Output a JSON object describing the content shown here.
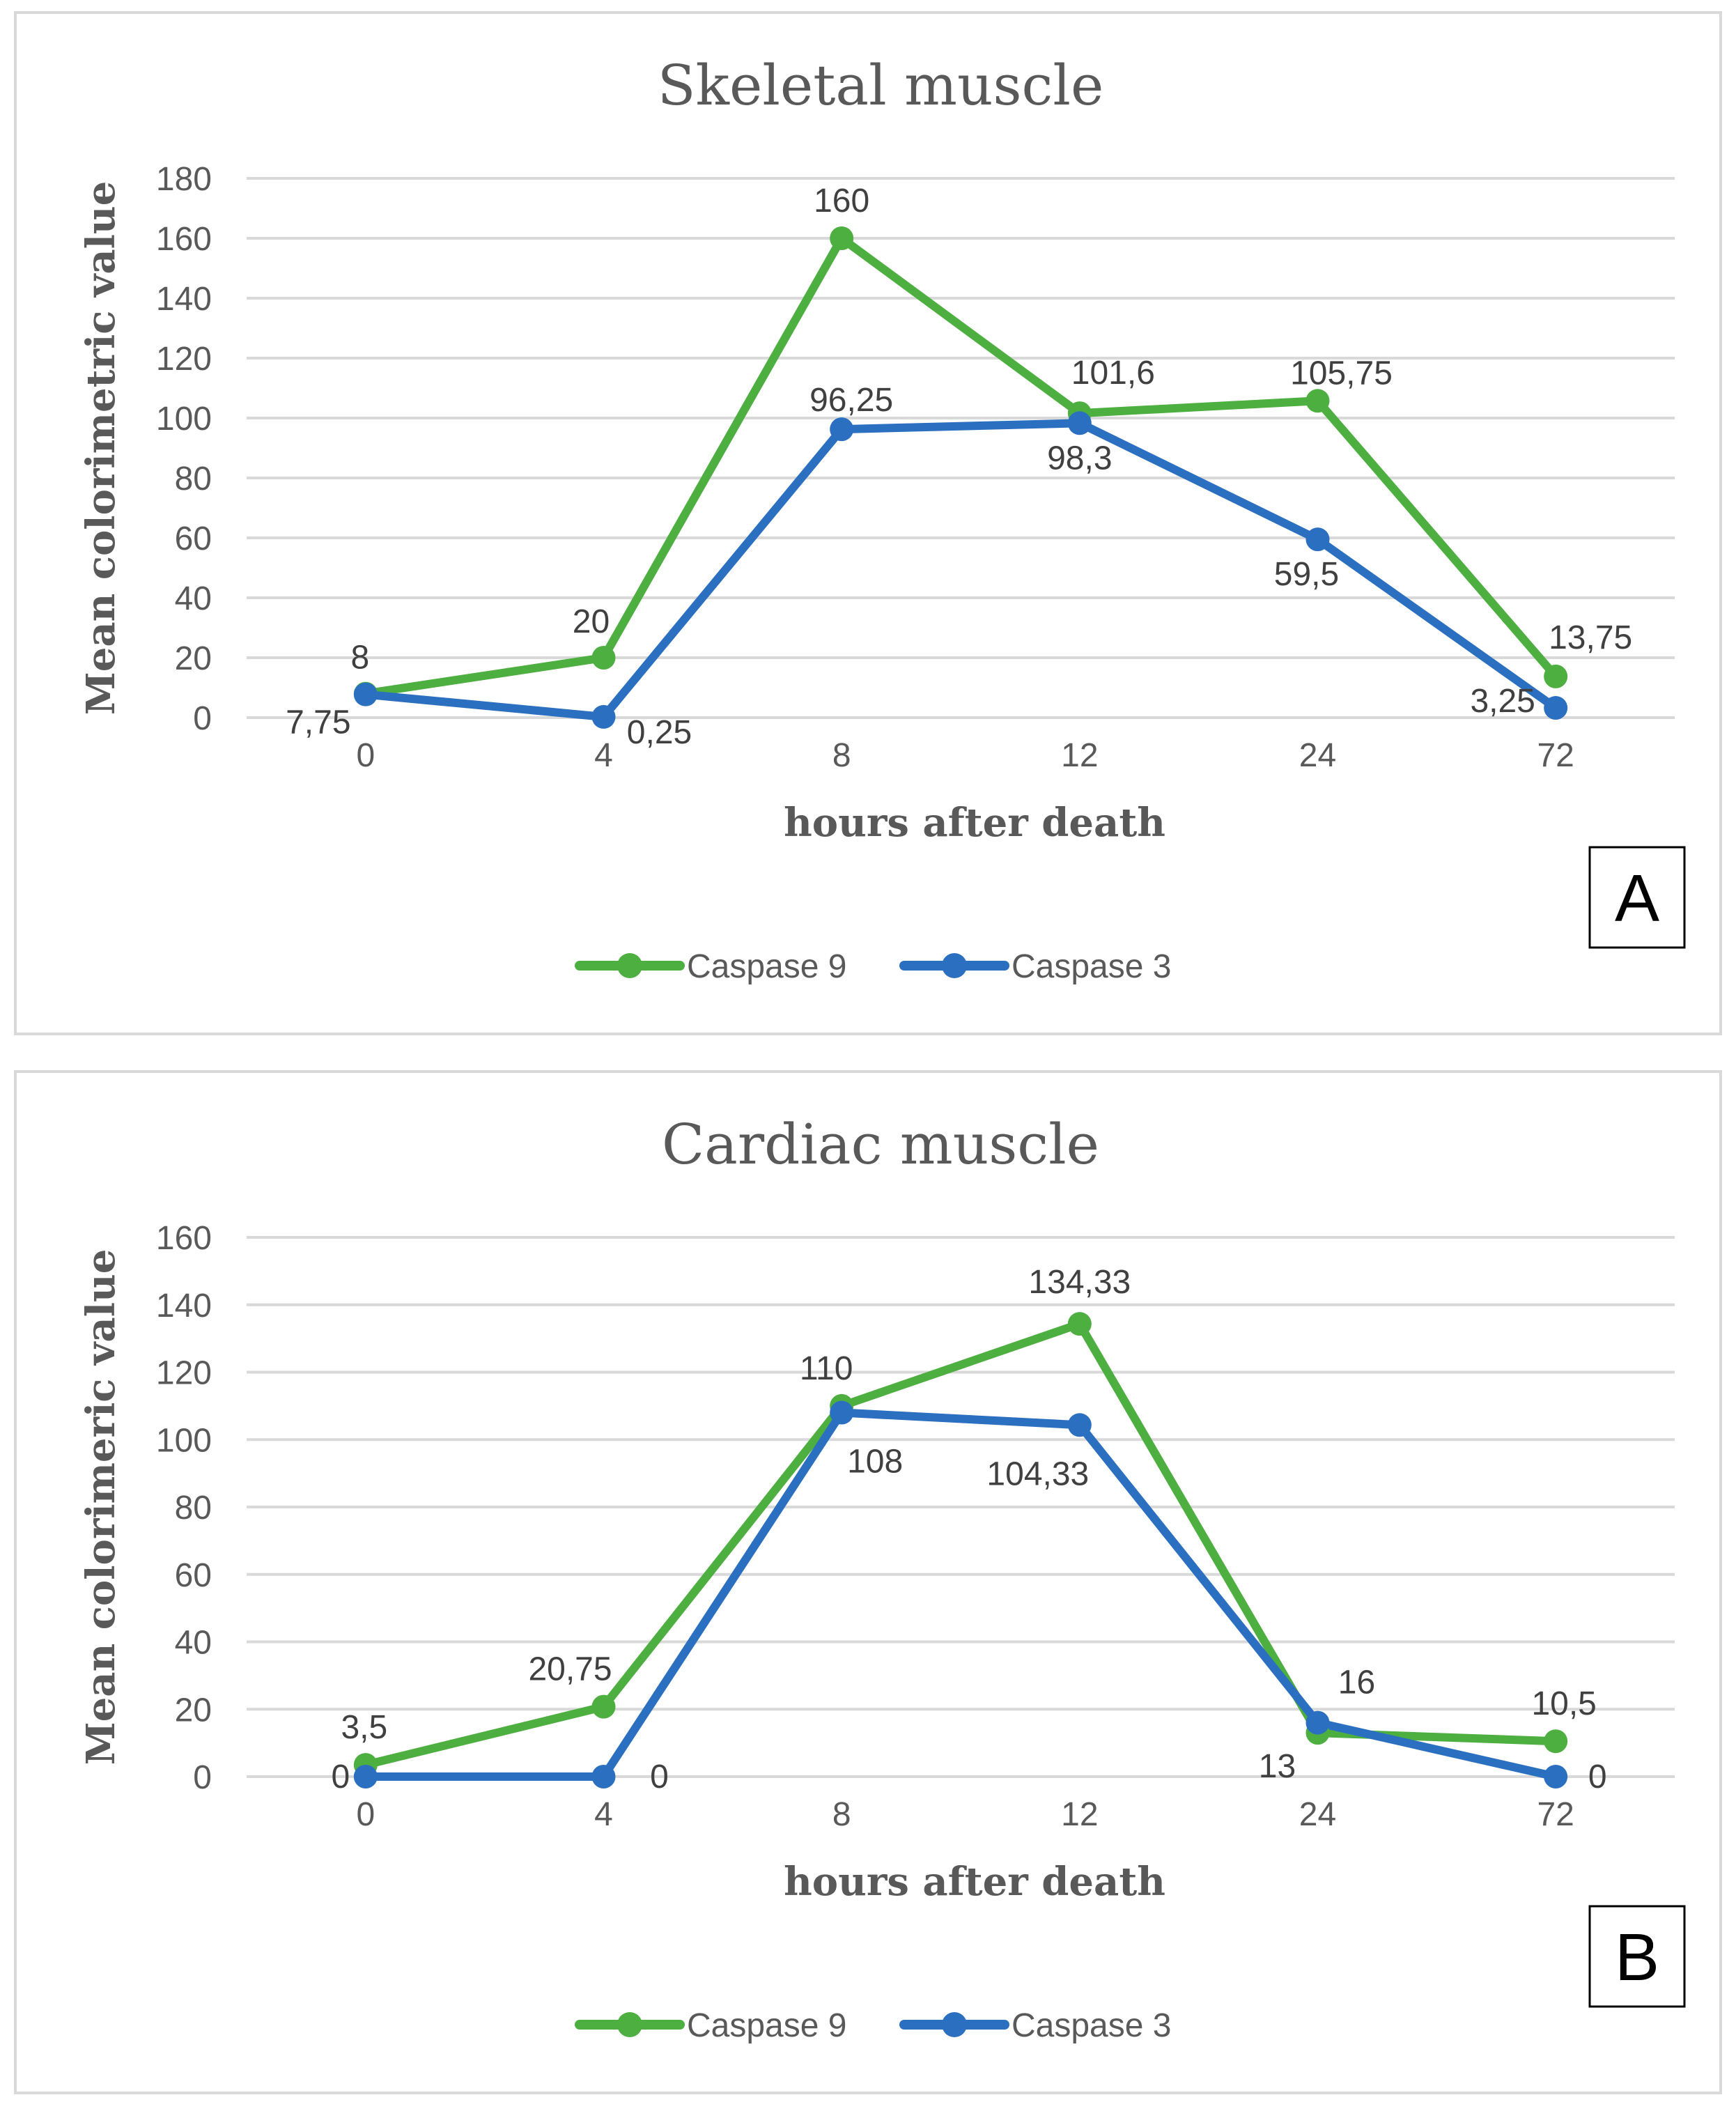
{
  "chart_data": [
    {
      "type": "line",
      "panel": "A",
      "title": "Skeletal muscle",
      "xlabel": "hours after death",
      "ylabel": "Mean colorimetric value",
      "categories": [
        "0",
        "4",
        "8",
        "12",
        "24",
        "72"
      ],
      "ylim": [
        0,
        180
      ],
      "yticks": [
        0,
        20,
        40,
        60,
        80,
        100,
        120,
        140,
        160,
        180
      ],
      "grid": true,
      "legend": "bottom",
      "series": [
        {
          "name": "Caspase 9",
          "color": "#4caf3f",
          "values": [
            8,
            20,
            160,
            101.6,
            105.75,
            13.75
          ],
          "labels": [
            "8",
            "20",
            "160",
            "101,6",
            "105,75",
            "13,75"
          ]
        },
        {
          "name": "Caspase 3",
          "color": "#2b6fc0",
          "values": [
            7.75,
            0.25,
            96.25,
            98.3,
            59.5,
            3.25
          ],
          "labels": [
            "7,75",
            "0,25",
            "96,25",
            "98,3",
            "59,5",
            "3,25"
          ]
        }
      ]
    },
    {
      "type": "line",
      "panel": "B",
      "title": "Cardiac  muscle",
      "xlabel": "hours after death",
      "ylabel": "Mean colorimeric value",
      "categories": [
        "0",
        "4",
        "8",
        "12",
        "24",
        "72"
      ],
      "ylim": [
        0,
        160
      ],
      "yticks": [
        0,
        20,
        40,
        60,
        80,
        100,
        120,
        140,
        160
      ],
      "grid": true,
      "legend": "bottom",
      "series": [
        {
          "name": "Caspase 9",
          "color": "#4caf3f",
          "values": [
            3.5,
            20.75,
            110,
            134.33,
            13,
            10.5
          ],
          "labels": [
            "3,5",
            "20,75",
            "110",
            "134,33",
            "13",
            "10,5"
          ]
        },
        {
          "name": "Caspase 3",
          "color": "#2b6fc0",
          "values": [
            0,
            0,
            108,
            104.33,
            16,
            0
          ],
          "labels": [
            "0",
            "0",
            "108",
            "104,33",
            "16",
            "0"
          ]
        }
      ]
    }
  ]
}
